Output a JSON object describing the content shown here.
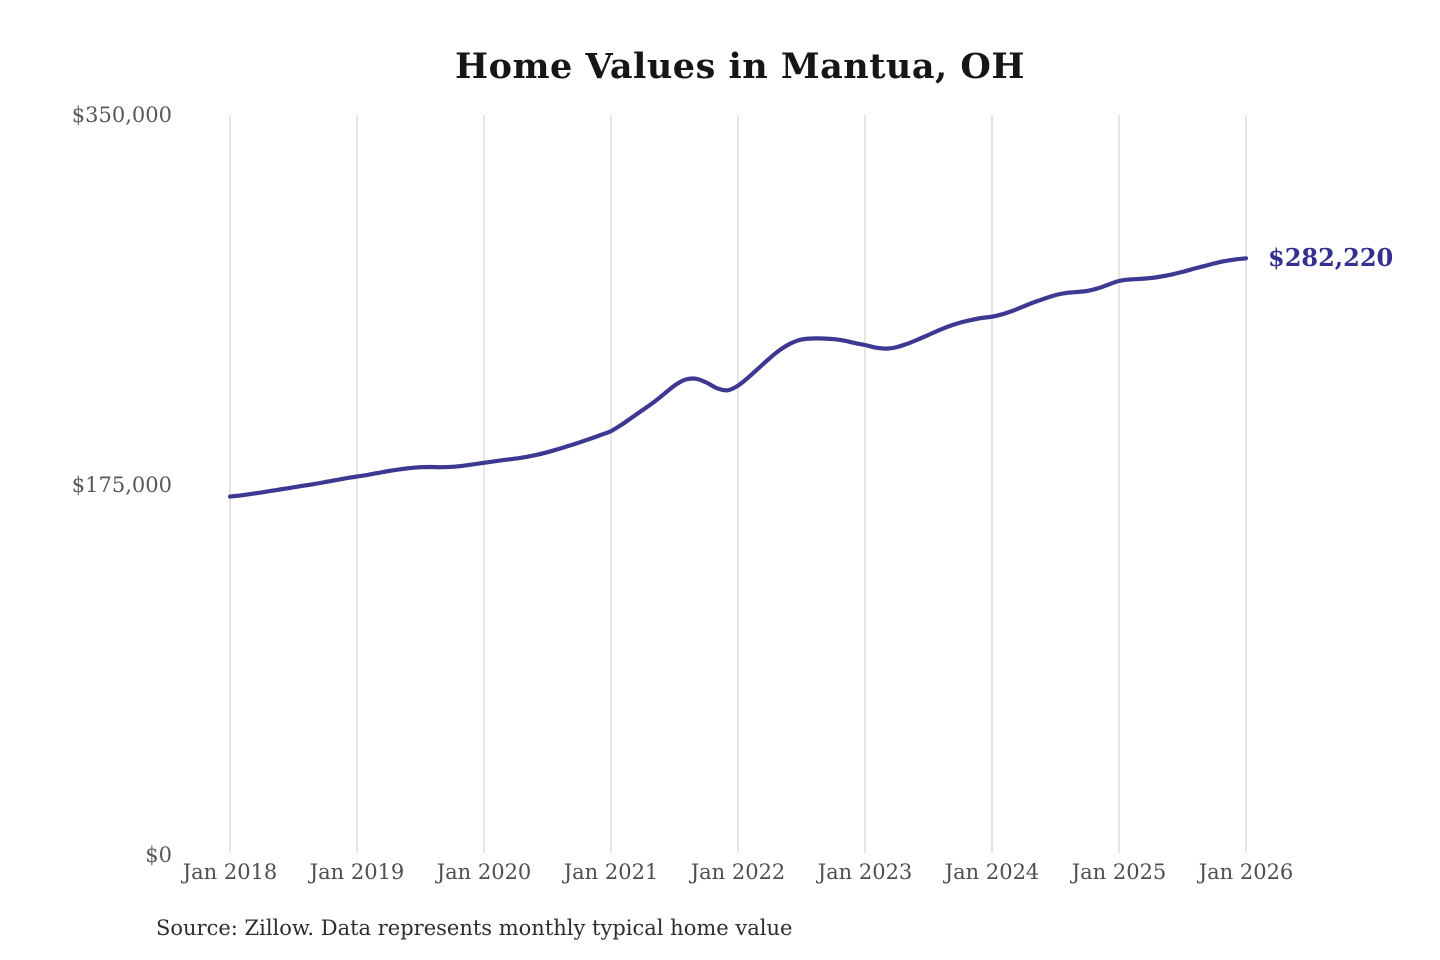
{
  "page": {
    "title": "Home Values in Mantua, OH",
    "source_note": "Source: Zillow. Data represents monthly typical home value"
  },
  "chart_data": {
    "type": "line",
    "title": "Home Values in Mantua, OH",
    "series_name": "Monthly typical home value",
    "x_start": "2018-01",
    "x_end": "2026-01",
    "interval": "monthly",
    "x_tick_labels": [
      "Jan 2018",
      "Jan 2019",
      "Jan 2020",
      "Jan 2021",
      "Jan 2022",
      "Jan 2023",
      "Jan 2024",
      "Jan 2025",
      "Jan 2026"
    ],
    "y_ticks": [
      {
        "label": "$0",
        "value": 0
      },
      {
        "label": "$175,000",
        "value": 175000
      },
      {
        "label": "$350,000",
        "value": 350000
      }
    ],
    "ylim": [
      0,
      350000
    ],
    "grid": "vertical-only",
    "legend": "none",
    "values": [
      169500,
      170100,
      170800,
      171500,
      172300,
      173100,
      173900,
      174700,
      175500,
      176400,
      177300,
      178200,
      179000,
      179800,
      180700,
      181600,
      182400,
      183000,
      183400,
      183500,
      183400,
      183600,
      184100,
      184800,
      185500,
      186200,
      186900,
      187500,
      188300,
      189300,
      190500,
      192000,
      193500,
      195100,
      196800,
      198600,
      200500,
      203500,
      207000,
      210500,
      214000,
      218000,
      222000,
      224800,
      225300,
      223500,
      220800,
      219800,
      222000,
      226000,
      230500,
      235000,
      239000,
      242000,
      243800,
      244300,
      244300,
      244000,
      243300,
      242200,
      241200,
      240000,
      239500,
      240200,
      241800,
      243800,
      246000,
      248200,
      250200,
      251800,
      253000,
      254000,
      254600,
      255800,
      257500,
      259500,
      261500,
      263200,
      264800,
      265800,
      266300,
      266800,
      268000,
      269800,
      271500,
      272200,
      272500,
      272900,
      273600,
      274600,
      275800,
      277200,
      278500,
      279800,
      280900,
      281700,
      282220
    ],
    "end_label": "$282,220",
    "end_value": 282220,
    "line_color": "#3d3892",
    "annotation_color": "#333090",
    "gridline_color": "#cbcbcb",
    "source": "Source: Zillow. Data represents monthly typical home value"
  }
}
